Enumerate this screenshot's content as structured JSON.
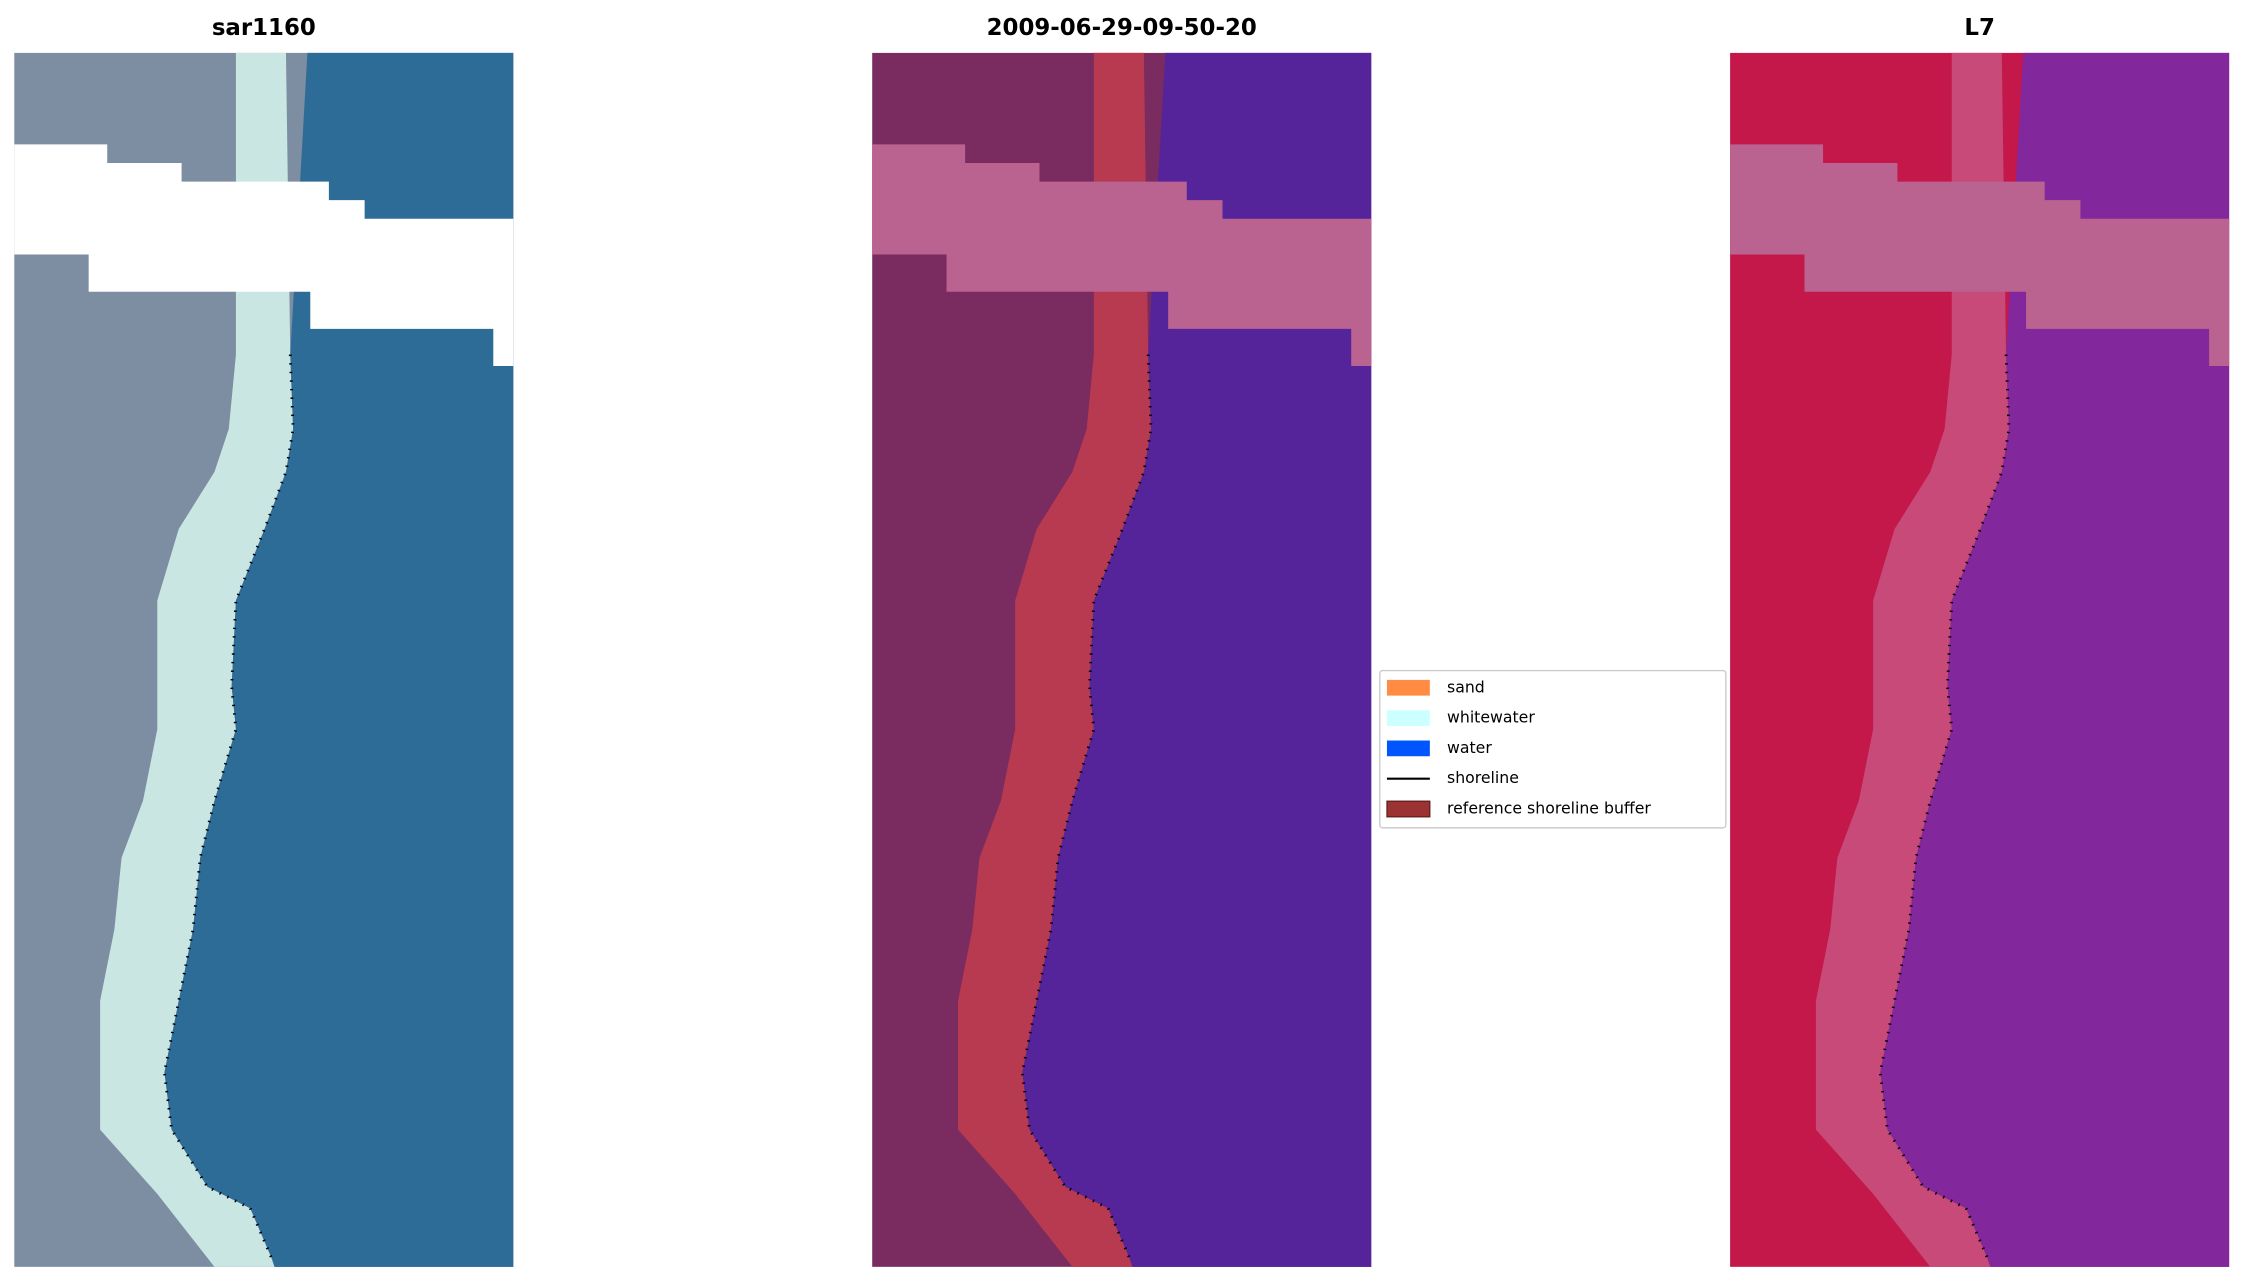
{
  "panels": [
    {
      "title": "sar1160"
    },
    {
      "title": "2009-06-29-09-50-20"
    },
    {
      "title": "L7"
    }
  ],
  "legend": {
    "items": [
      {
        "label": "sand",
        "kind": "patch",
        "color": "#ff8c42"
      },
      {
        "label": "whitewater",
        "kind": "patch",
        "color": "#ccffff"
      },
      {
        "label": "water",
        "kind": "patch",
        "color": "#0055ff"
      },
      {
        "label": "shoreline",
        "kind": "line",
        "color": "#000000"
      },
      {
        "label": "reference shoreline buffer",
        "kind": "patch",
        "color": "#9b3333"
      }
    ]
  }
}
